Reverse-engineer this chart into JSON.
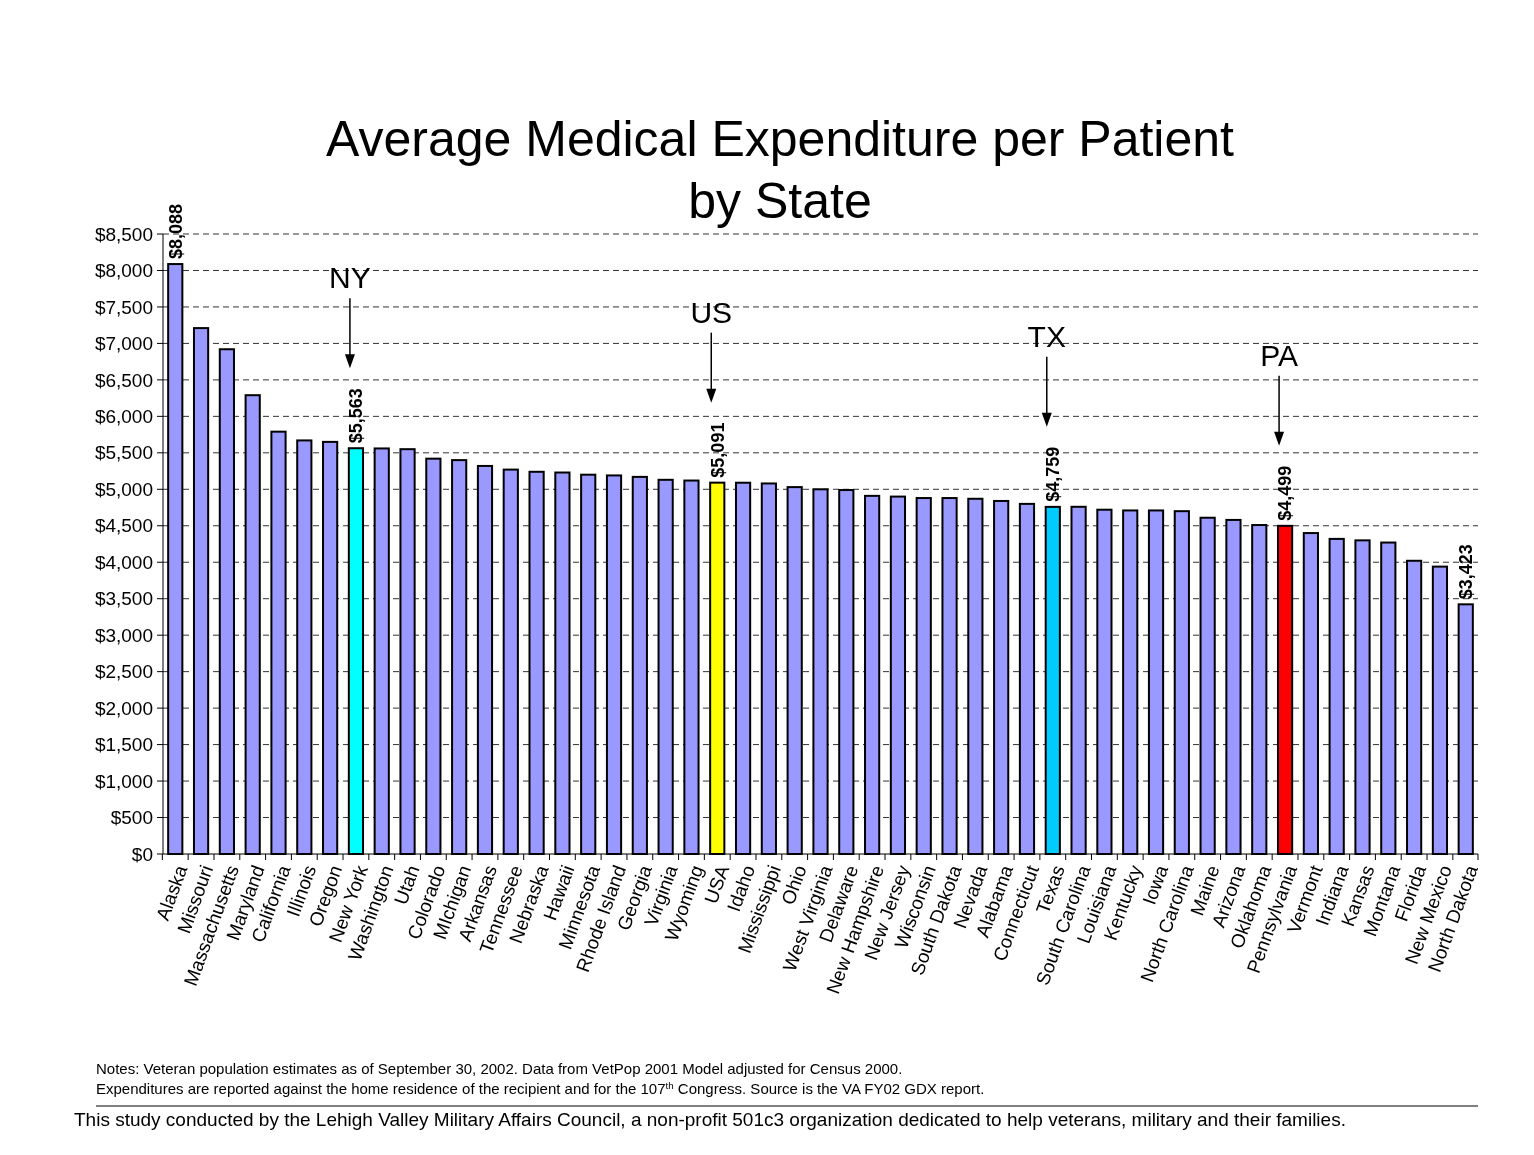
{
  "chart_data": {
    "type": "bar",
    "title": "Average Medical Expenditure per Patient\nby State",
    "categories": [
      "Alaska",
      "Missouri",
      "Massachusetts",
      "Maryland",
      "California",
      "Illinois",
      "Oregon",
      "New York",
      "Washington",
      "Utah",
      "Colorado",
      "MIchigan",
      "Arkansas",
      "Tennessee",
      "Nebraska",
      "Hawaii",
      "Minnesota",
      "Rhode Island",
      "Georgia",
      "Virginia",
      "Wyoming",
      "USA",
      "Idaho",
      "Mississippi",
      "Ohio",
      "West Virginia",
      "Delaware",
      "New Hampshire",
      "New Jersey",
      "Wisconsin",
      "South Dakota",
      "Nevada",
      "Alabama",
      "Connecticut",
      "Texas",
      "South Carolina",
      "Louisiana",
      "Kentucky",
      "Iowa",
      "North Carolina",
      "Maine",
      "Arizona",
      "Oklahoma",
      "Pennsylvania",
      "Vermont",
      "Indiana",
      "Kansas",
      "Montana",
      "Florida",
      "New Mexico",
      "North Dakota"
    ],
    "values": [
      8088,
      7210,
      6920,
      6290,
      5790,
      5670,
      5650,
      5563,
      5560,
      5550,
      5420,
      5400,
      5320,
      5270,
      5240,
      5230,
      5200,
      5190,
      5170,
      5130,
      5120,
      5091,
      5090,
      5080,
      5030,
      5000,
      4990,
      4910,
      4900,
      4880,
      4880,
      4870,
      4840,
      4800,
      4759,
      4760,
      4720,
      4710,
      4710,
      4700,
      4610,
      4580,
      4510,
      4499,
      4400,
      4320,
      4300,
      4270,
      4020,
      3940,
      3423
    ],
    "colors": [
      "#9999ff",
      "#9999ff",
      "#9999ff",
      "#9999ff",
      "#9999ff",
      "#9999ff",
      "#9999ff",
      "#00ffff",
      "#9999ff",
      "#9999ff",
      "#9999ff",
      "#9999ff",
      "#9999ff",
      "#9999ff",
      "#9999ff",
      "#9999ff",
      "#9999ff",
      "#9999ff",
      "#9999ff",
      "#9999ff",
      "#9999ff",
      "#ffff00",
      "#9999ff",
      "#9999ff",
      "#9999ff",
      "#9999ff",
      "#9999ff",
      "#9999ff",
      "#9999ff",
      "#9999ff",
      "#9999ff",
      "#9999ff",
      "#9999ff",
      "#9999ff",
      "#00ccff",
      "#9999ff",
      "#9999ff",
      "#9999ff",
      "#9999ff",
      "#9999ff",
      "#9999ff",
      "#9999ff",
      "#9999ff",
      "#ff0000",
      "#9999ff",
      "#9999ff",
      "#9999ff",
      "#9999ff",
      "#9999ff",
      "#9999ff",
      "#9999ff"
    ],
    "value_labels": [
      "$8,088",
      null,
      null,
      null,
      null,
      null,
      null,
      "$5,563",
      null,
      null,
      null,
      null,
      null,
      null,
      null,
      null,
      null,
      null,
      null,
      null,
      null,
      "$5,091",
      null,
      null,
      null,
      null,
      null,
      null,
      null,
      null,
      null,
      null,
      null,
      null,
      "$4,759",
      null,
      null,
      null,
      null,
      null,
      null,
      null,
      null,
      "$4,499",
      null,
      null,
      null,
      null,
      null,
      null,
      "$3,423"
    ],
    "ylim": [
      0,
      8500
    ],
    "yticks": [
      {
        "value": 0,
        "label": "$0"
      },
      {
        "value": 500,
        "label": "$500"
      },
      {
        "value": 1000,
        "label": "$1,000"
      },
      {
        "value": 1500,
        "label": "$1,500"
      },
      {
        "value": 2000,
        "label": "$2,000"
      },
      {
        "value": 2500,
        "label": "$2,500"
      },
      {
        "value": 3000,
        "label": "$3,000"
      },
      {
        "value": 3500,
        "label": "$3,500"
      },
      {
        "value": 4000,
        "label": "$4,000"
      },
      {
        "value": 4500,
        "label": "$4,500"
      },
      {
        "value": 5000,
        "label": "$5,000"
      },
      {
        "value": 5500,
        "label": "$5,500"
      },
      {
        "value": 6000,
        "label": "$6,000"
      },
      {
        "value": 6500,
        "label": "$6,500"
      },
      {
        "value": 7000,
        "label": "$7,000"
      },
      {
        "value": 7500,
        "label": "$7,500"
      },
      {
        "value": 8000,
        "label": "$8,000"
      },
      {
        "value": 8500,
        "label": "$8,500"
      }
    ],
    "grid": "y",
    "annotations": [
      "NY",
      "US",
      "TX",
      "PA",
      "Notes: Veteran population estimates as of September 30, 2002.  Data from VetPop 2001 Model adjusted for Census 2000.",
      "Expenditures are reported against the home residence of the recipient and for the 107$^{th}$ Congress. Source is the VA FY02 GDX report.",
      "This study conducted by the Lehigh Valley Military Affairs Council, a non-profit 501c3 organization dedicated to help veterans, military and their families."
    ]
  }
}
